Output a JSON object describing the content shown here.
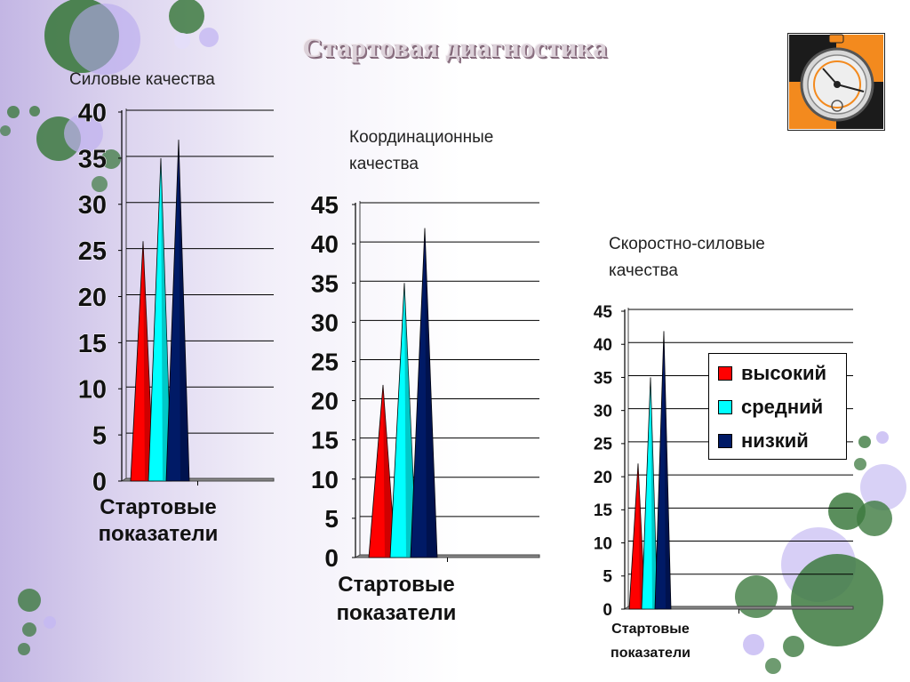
{
  "slide": {
    "title": "Стартовая диагностика"
  },
  "legend": {
    "items": [
      {
        "label": "высокий",
        "color": "#ff0000"
      },
      {
        "label": "средний",
        "color": "#00ffff"
      },
      {
        "label": "низкий",
        "color": "#001a66"
      }
    ]
  },
  "chart_data": [
    {
      "type": "bar",
      "title": "Силовые качества",
      "categories": [
        "Стартовые показатели"
      ],
      "category_label": "Стартовые\nпоказатели",
      "ylim": [
        0,
        40
      ],
      "yticks": [
        "0",
        "5",
        "10",
        "15",
        "20",
        "25",
        "30",
        "35",
        "40"
      ],
      "grid": true,
      "series": [
        {
          "name": "высокий",
          "values": [
            26
          ]
        },
        {
          "name": "средний",
          "values": [
            35
          ]
        },
        {
          "name": "низкий",
          "values": [
            37
          ]
        }
      ]
    },
    {
      "type": "bar",
      "title": "Координационные\nкачества",
      "categories": [
        "Стартовые показатели"
      ],
      "category_label": "Стартовые\nпоказатели",
      "ylim": [
        0,
        45
      ],
      "yticks": [
        "0",
        "5",
        "10",
        "15",
        "20",
        "25",
        "30",
        "35",
        "40",
        "45"
      ],
      "grid": true,
      "series": [
        {
          "name": "высокий",
          "values": [
            22
          ]
        },
        {
          "name": "средний",
          "values": [
            35
          ]
        },
        {
          "name": "низкий",
          "values": [
            42
          ]
        }
      ]
    },
    {
      "type": "bar",
      "title": "Скоростно-силовые\nкачества",
      "categories": [
        "Стартовые показатели"
      ],
      "category_label": "Стартовые\nпоказатели",
      "ylim": [
        0,
        45
      ],
      "yticks": [
        "0",
        "5",
        "10",
        "15",
        "20",
        "25",
        "30",
        "35",
        "40",
        "45"
      ],
      "grid": true,
      "legend_position": "right",
      "series": [
        {
          "name": "высокий",
          "values": [
            22
          ]
        },
        {
          "name": "средний",
          "values": [
            35
          ]
        },
        {
          "name": "низкий",
          "values": [
            42
          ]
        }
      ]
    }
  ]
}
